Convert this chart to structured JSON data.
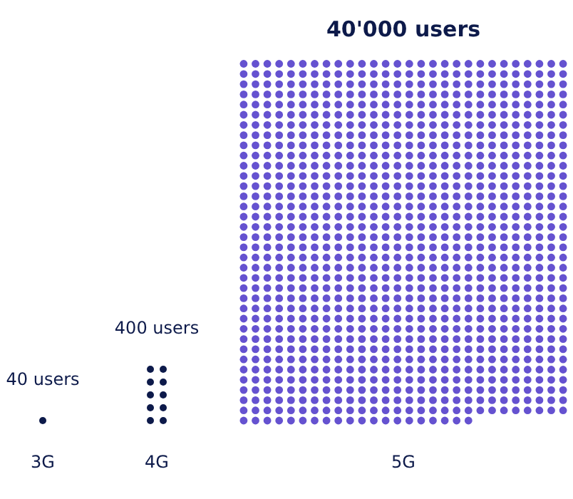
{
  "chart_data": {
    "type": "other",
    "categories": [
      "3G",
      "4G",
      "5G"
    ],
    "values": [
      40,
      400,
      40000
    ],
    "value_labels": [
      "40 users",
      "400 users",
      "40'000 users"
    ],
    "colors": [
      "#0d1a4a",
      "#0d1a4a",
      "#6552d0"
    ]
  }
}
